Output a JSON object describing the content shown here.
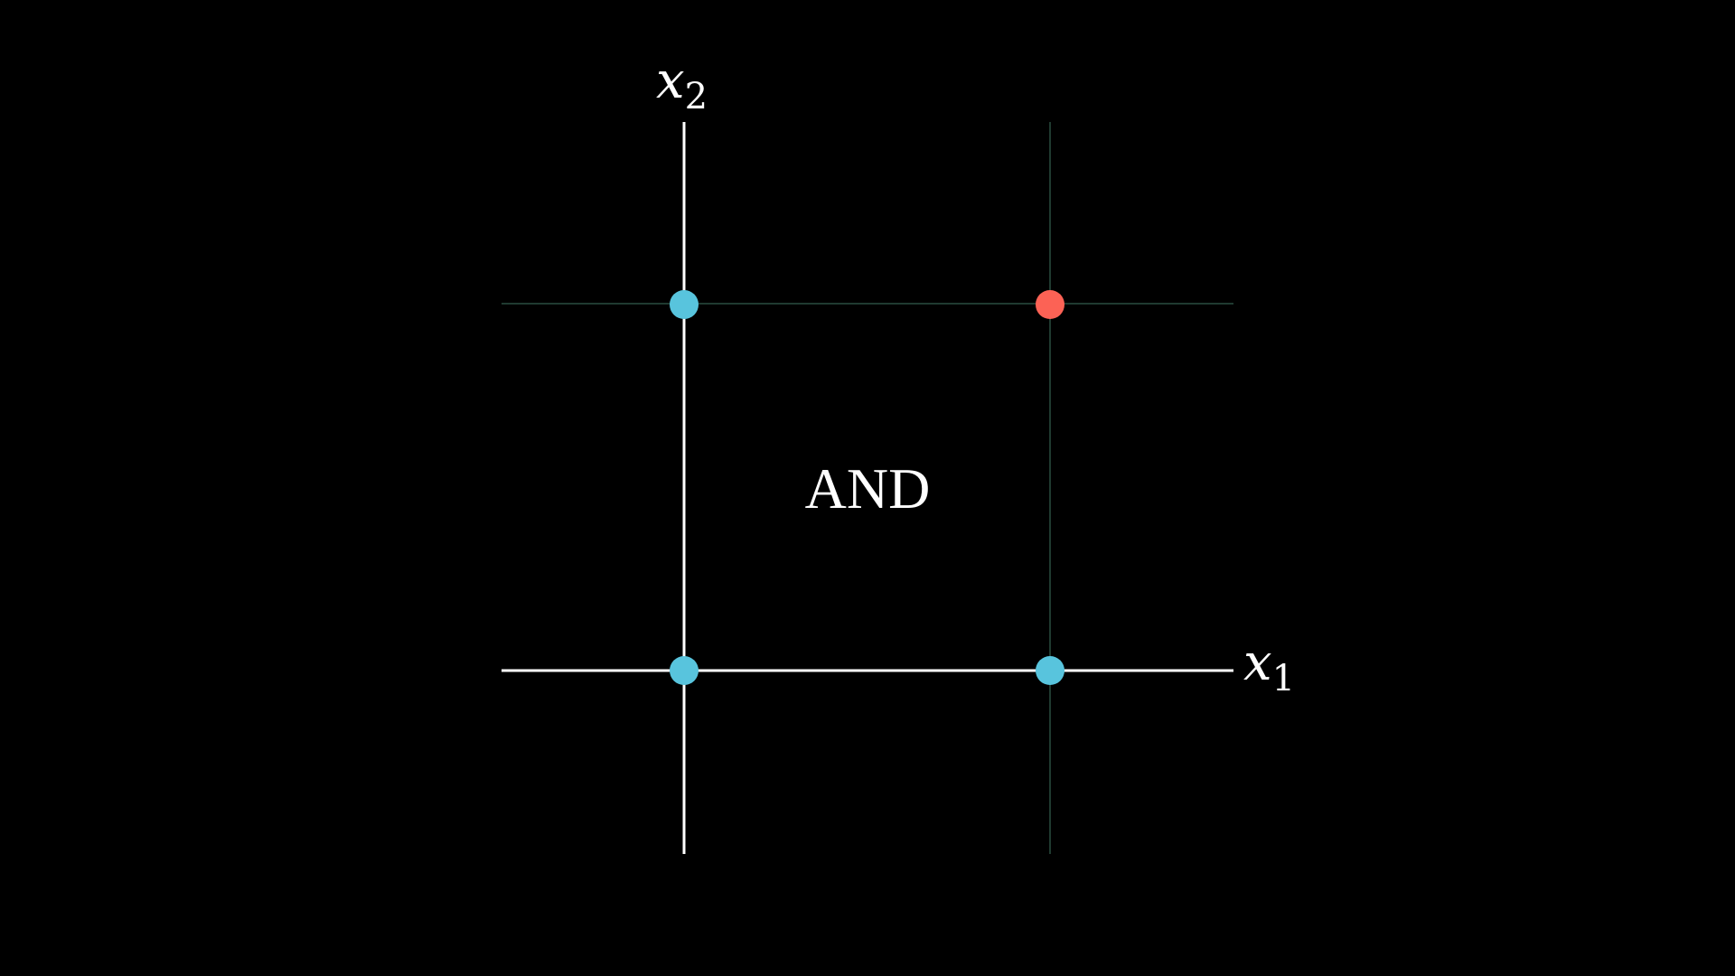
{
  "operator_label": "AND",
  "x_axis": {
    "var": "x",
    "sub": "1"
  },
  "y_axis": {
    "var": "x",
    "sub": "2"
  },
  "colors": {
    "background": "#000000",
    "axis": "#ffffff",
    "grid": "#1f3a30",
    "point_false": "#58c4dd",
    "point_true": "#fc6255"
  },
  "points": [
    {
      "x1": 0,
      "x2": 0,
      "output": 0
    },
    {
      "x1": 1,
      "x2": 0,
      "output": 0
    },
    {
      "x1": 0,
      "x2": 1,
      "output": 0
    },
    {
      "x1": 1,
      "x2": 1,
      "output": 1
    }
  ]
}
